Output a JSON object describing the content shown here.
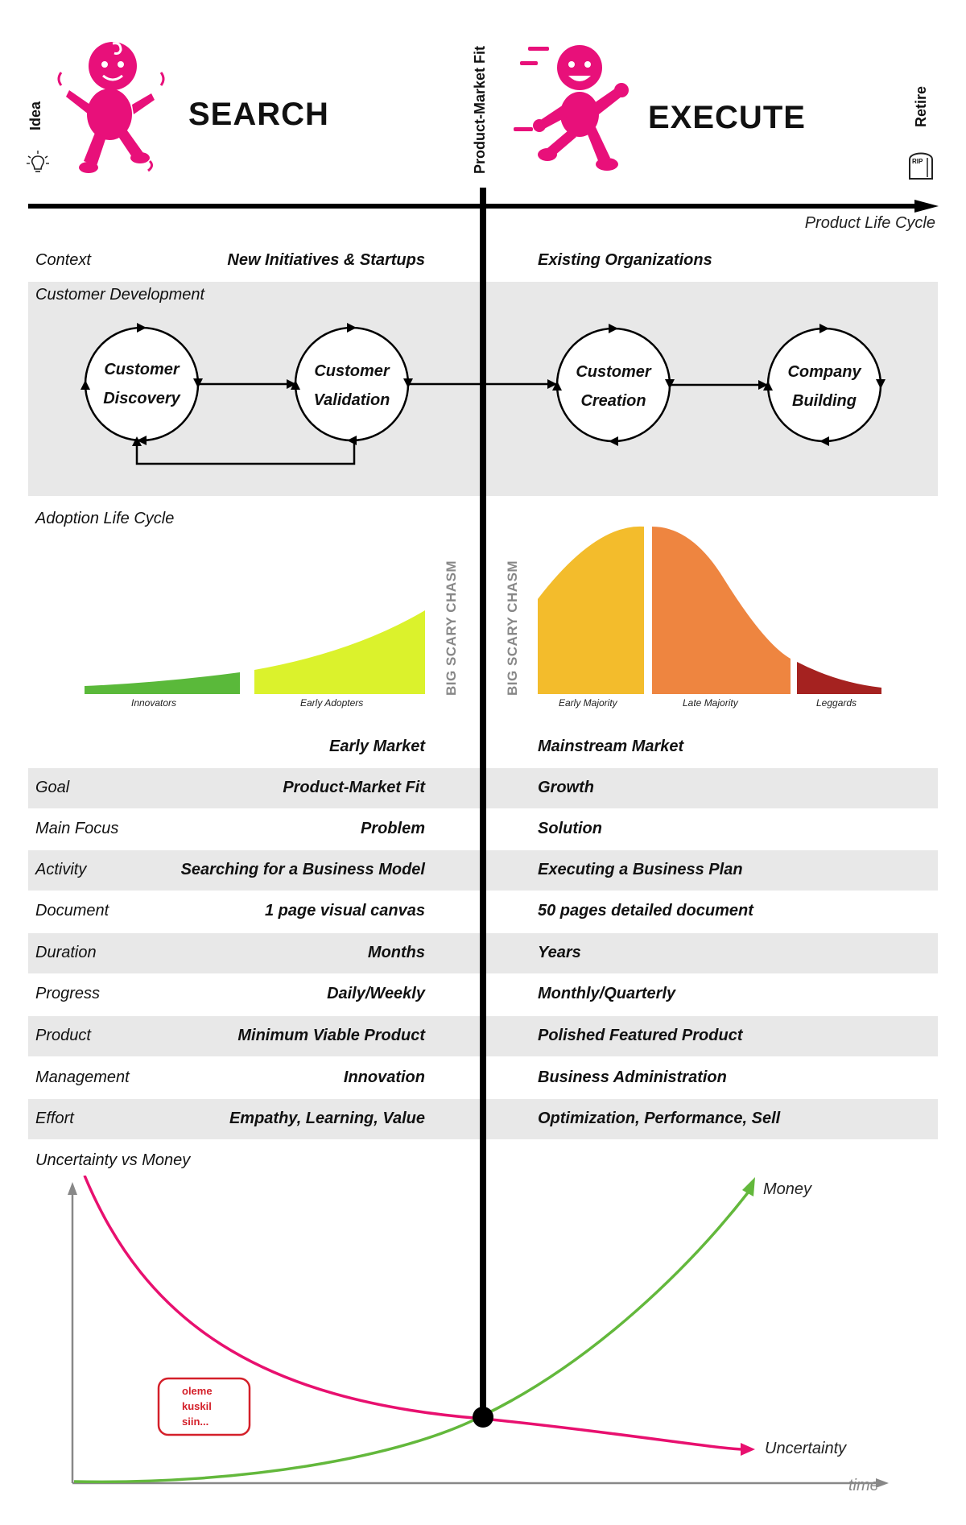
{
  "header": {
    "idea": "Idea",
    "search": "SEARCH",
    "pmf": "Product-Market Fit",
    "execute": "EXECUTE",
    "retire": "Retire",
    "rip": "RIP",
    "axis_label": "Product Life Cycle"
  },
  "context": {
    "label": "Context",
    "left": "New Initiatives & Startups",
    "right": "Existing Organizations"
  },
  "customer_development": {
    "label": "Customer Development",
    "steps": [
      {
        "line1": "Customer",
        "line2": "Discovery"
      },
      {
        "line1": "Customer",
        "line2": "Validation"
      },
      {
        "line1": "Customer",
        "line2": "Creation"
      },
      {
        "line1": "Company",
        "line2": "Building"
      }
    ]
  },
  "adoption": {
    "label": "Adoption Life Cycle",
    "chasm": "BIG SCARY CHASM",
    "segments": [
      "Innovators",
      "Early Adopters",
      "Early Majority",
      "Late Majority",
      "Leggards"
    ],
    "colors": {
      "innovators": "#5ab93a",
      "early_adopters": "#dbf22c",
      "early_majority": "#f3bc2c",
      "late_majority": "#ee8540",
      "laggards": "#a52220"
    }
  },
  "market": {
    "left": "Early Market",
    "right": "Mainstream Market"
  },
  "rows": [
    {
      "label": "Goal",
      "left": "Product-Market Fit",
      "right": "Growth"
    },
    {
      "label": "Main Focus",
      "left": "Problem",
      "right": "Solution"
    },
    {
      "label": "Activity",
      "left": "Searching for a Business Model",
      "right": "Executing a Business Plan"
    },
    {
      "label": "Document",
      "left": "1 page visual canvas",
      "right": "50 pages detailed document"
    },
    {
      "label": "Duration",
      "left": "Months",
      "right": "Years"
    },
    {
      "label": "Progress",
      "left": "Daily/Weekly",
      "right": "Monthly/Quarterly"
    },
    {
      "label": "Product",
      "left": "Minimum Viable Product",
      "right": "Polished Featured Product"
    },
    {
      "label": "Management",
      "left": "Innovation",
      "right": "Business Administration"
    },
    {
      "label": "Effort",
      "left": "Empathy, Learning, Value",
      "right": "Optimization, Performance, Sell"
    }
  ],
  "uncertainty": {
    "label": "Uncertainty vs Money",
    "money": "Money",
    "uncertainty": "Uncertainty",
    "time": "time",
    "note": [
      "oleme",
      "kuskil",
      "siin..."
    ],
    "colors": {
      "money": "#63b83c",
      "uncertainty": "#e8106f",
      "note": "#d4202a"
    }
  },
  "colors": {
    "brand_pink": "#e8107a",
    "band_gray": "#e8e8e8"
  }
}
